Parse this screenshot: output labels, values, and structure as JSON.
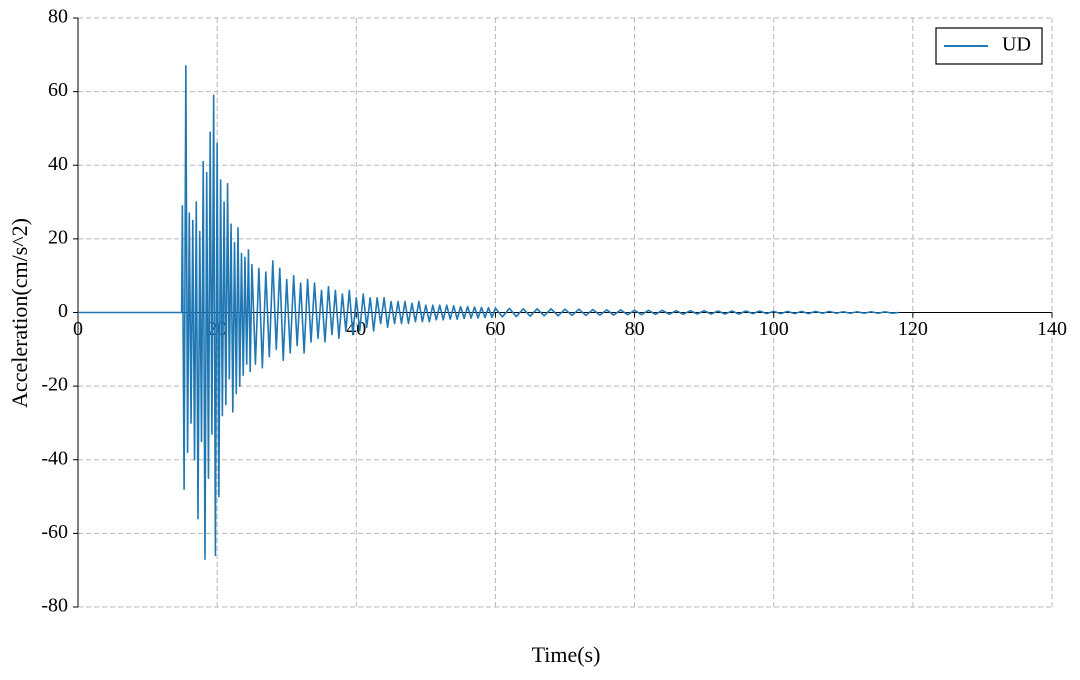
{
  "chart_data": {
    "type": "line",
    "xlabel": "Time(s)",
    "ylabel": "Acceleration(cm/s^2)",
    "x": [
      0,
      14.9,
      15,
      15.25,
      15.5,
      15.75,
      16,
      16.25,
      16.5,
      16.75,
      17,
      17.25,
      17.5,
      17.75,
      18,
      18.25,
      18.5,
      18.75,
      19,
      19.25,
      19.5,
      19.75,
      20,
      20.25,
      20.5,
      20.75,
      21,
      21.25,
      21.5,
      21.75,
      22,
      22.25,
      22.5,
      22.75,
      23,
      23.25,
      23.5,
      23.75,
      24,
      24.25,
      24.5,
      24.75,
      25,
      25.5,
      26,
      26.5,
      27,
      27.5,
      28,
      28.5,
      29,
      29.5,
      30,
      30.5,
      31,
      31.5,
      32,
      32.5,
      33,
      33.5,
      34,
      34.5,
      35,
      35.5,
      36,
      36.5,
      37,
      37.5,
      38,
      38.5,
      39,
      39.5,
      40,
      40.5,
      41,
      41.5,
      42,
      42.5,
      43,
      43.5,
      44,
      44.5,
      45,
      45.5,
      46,
      46.5,
      47,
      47.5,
      48,
      48.5,
      49,
      49.5,
      50,
      50.5,
      51,
      51.5,
      52,
      52.5,
      53,
      53.5,
      54,
      54.5,
      55,
      55.5,
      56,
      56.5,
      57,
      57.5,
      58,
      58.5,
      59,
      59.5,
      60,
      61,
      62,
      63,
      64,
      65,
      66,
      67,
      68,
      69,
      70,
      71,
      72,
      73,
      74,
      75,
      76,
      77,
      78,
      79,
      80,
      81,
      82,
      83,
      84,
      85,
      86,
      87,
      88,
      89,
      90,
      91,
      92,
      93,
      94,
      95,
      96,
      97,
      98,
      99,
      100,
      101,
      102,
      103,
      104,
      105,
      106,
      107,
      108,
      109,
      110,
      111,
      112,
      113,
      114,
      115,
      116,
      117,
      118
    ],
    "series": [
      {
        "name": "UD",
        "color": "#1f77b4",
        "values": [
          0,
          0,
          29,
          -48,
          67,
          -38,
          27,
          -30,
          25,
          -40,
          30,
          -56,
          22,
          -35,
          41,
          -67,
          38,
          -45,
          49,
          -33,
          59,
          -66,
          46,
          -50,
          36,
          -28,
          30,
          -25,
          35,
          -18,
          24,
          -27,
          19,
          -22,
          23,
          -20,
          16,
          -17,
          15,
          -14,
          17,
          -16,
          13,
          -14,
          12,
          -15,
          11,
          -12,
          14,
          -10,
          12,
          -13,
          9,
          -11,
          10,
          -9,
          8,
          -11,
          9,
          -8,
          8,
          -7,
          6,
          -8,
          7,
          -6,
          6,
          -7,
          5,
          -5,
          6,
          -6,
          4,
          -5,
          5,
          -4,
          4,
          -5,
          4,
          -3,
          4,
          -4,
          3,
          -3,
          3,
          -3,
          3,
          -3,
          2.5,
          -2.5,
          3,
          -2.5,
          2,
          -2.5,
          2,
          -2,
          2,
          -2,
          2,
          -1.8,
          1.8,
          -1.8,
          1.6,
          -1.6,
          1.6,
          -1.5,
          1.5,
          -1.5,
          1.4,
          -1.4,
          1.3,
          -1.3,
          1.2,
          -1.2,
          1.1,
          -1.1,
          1,
          -1,
          1,
          -0.9,
          1,
          -0.9,
          0.9,
          -0.8,
          0.9,
          -0.8,
          0.8,
          -0.7,
          0.7,
          -0.7,
          0.7,
          -0.6,
          0.6,
          -0.6,
          0.6,
          -0.5,
          0.6,
          -0.5,
          0.5,
          -0.5,
          0.5,
          -0.4,
          0.5,
          -0.4,
          0.4,
          -0.4,
          0.4,
          -0.4,
          0.4,
          -0.3,
          0.4,
          -0.3,
          0.3,
          -0.3,
          0.3,
          -0.3,
          0.3,
          -0.3,
          0.3,
          -0.2,
          0.3,
          -0.2,
          0.2,
          -0.2,
          0.2,
          -0.2,
          0.2,
          -0.2,
          0.2,
          -0.2,
          0
        ]
      }
    ],
    "xlim": [
      0,
      140
    ],
    "ylim": [
      -80,
      80
    ],
    "xticks": [
      0,
      20,
      40,
      60,
      80,
      100,
      120,
      140
    ],
    "yticks": [
      -80,
      -60,
      -40,
      -20,
      0,
      20,
      40,
      60,
      80
    ],
    "grid": true,
    "legend": "upper right"
  }
}
